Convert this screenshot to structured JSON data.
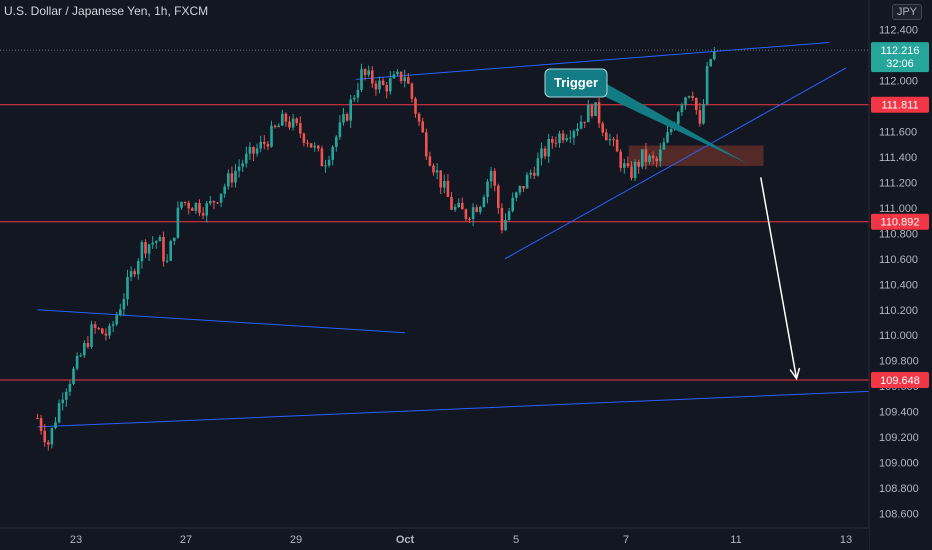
{
  "header": {
    "title": "U.S. Dollar / Japanese Yen, 1h, FXCM",
    "currency": "JPY"
  },
  "chart_data": {
    "type": "candlestick",
    "symbol": "USDJPY",
    "timeframe": "1h",
    "ylim": [
      108.55,
      112.55
    ],
    "y_ticks": [
      108.6,
      108.8,
      109.0,
      109.2,
      109.4,
      109.6,
      109.8,
      110.0,
      110.2,
      110.4,
      110.6,
      110.8,
      111.0,
      111.2,
      111.4,
      111.6,
      111.8,
      112.0,
      112.2,
      112.4
    ],
    "x_ticks": [
      {
        "label": "23",
        "day": 23
      },
      {
        "label": "27",
        "day": 27
      },
      {
        "label": "29",
        "day": 29
      },
      {
        "label": "Oct",
        "day": 31
      },
      {
        "label": "5",
        "day": 35
      },
      {
        "label": "7",
        "day": 37
      },
      {
        "label": "11",
        "day": 41
      },
      {
        "label": "13",
        "day": 43
      }
    ],
    "price_path": [
      [
        21.6,
        109.35
      ],
      [
        22.0,
        109.15
      ],
      [
        22.5,
        109.55
      ],
      [
        23.0,
        109.75
      ],
      [
        23.6,
        110.05
      ],
      [
        24.2,
        110.0
      ],
      [
        24.8,
        110.35
      ],
      [
        25.4,
        110.7
      ],
      [
        26.0,
        110.75
      ],
      [
        26.3,
        110.55
      ],
      [
        26.8,
        111.05
      ],
      [
        27.4,
        111.0
      ],
      [
        28.0,
        111.35
      ],
      [
        28.4,
        111.5
      ],
      [
        28.8,
        111.7
      ],
      [
        29.2,
        111.55
      ],
      [
        29.5,
        111.35
      ],
      [
        29.9,
        111.7
      ],
      [
        30.2,
        112.05
      ],
      [
        30.6,
        111.95
      ],
      [
        31.0,
        112.05
      ],
      [
        31.4,
        111.75
      ],
      [
        31.8,
        111.45
      ],
      [
        32.2,
        111.25
      ],
      [
        32.7,
        111.0
      ],
      [
        33.2,
        110.95
      ],
      [
        33.7,
        111.05
      ],
      [
        34.1,
        111.3
      ],
      [
        34.5,
        110.85
      ],
      [
        34.9,
        111.05
      ],
      [
        35.3,
        111.3
      ],
      [
        35.7,
        111.55
      ],
      [
        36.1,
        111.65
      ],
      [
        36.4,
        111.8
      ],
      [
        36.8,
        111.45
      ],
      [
        37.1,
        111.25
      ],
      [
        37.6,
        111.4
      ],
      [
        38.1,
        111.35
      ],
      [
        38.6,
        111.6
      ],
      [
        39.0,
        111.85
      ],
      [
        39.4,
        111.95
      ],
      [
        39.7,
        111.6
      ],
      [
        40.0,
        112.15
      ],
      [
        40.3,
        112.23
      ]
    ],
    "horizontal_levels": [
      111.811,
      110.892,
      109.648
    ],
    "zone": {
      "day_start": 37.1,
      "day_end": 41.5,
      "low": 111.33,
      "high": 111.49
    },
    "trendlines": [
      {
        "from": [
          30.1,
          112.01
        ],
        "to": [
          42.7,
          112.3
        ]
      },
      {
        "from": [
          34.6,
          110.6
        ],
        "to": [
          43.0,
          112.1
        ]
      },
      {
        "from": [
          21.6,
          110.2
        ],
        "to": [
          31.0,
          110.02
        ]
      },
      {
        "from": [
          21.6,
          109.28
        ],
        "to": [
          44.0,
          109.57
        ]
      }
    ],
    "arrow": {
      "from": [
        41.45,
        111.24
      ],
      "to": [
        42.1,
        109.66
      ]
    },
    "callout": {
      "label": "Trigger",
      "tip": [
        41.2,
        111.35
      ]
    },
    "last_price": {
      "value": "112.216",
      "countdown": "32:06",
      "color": "#26a69a"
    },
    "level_labels": [
      {
        "value": "111.811",
        "price": 111.811,
        "color": "#f23645"
      },
      {
        "value": "110.892",
        "price": 110.892,
        "color": "#f23645"
      },
      {
        "value": "109.648",
        "price": 109.648,
        "color": "#f23645"
      }
    ],
    "colors": {
      "background": "#131722",
      "up": "#26a69a",
      "down": "#ef5350",
      "level": "#f23645",
      "trendline": "#2962ff",
      "zone": "#8b3a2f",
      "callout": "#137b83"
    },
    "grid": false
  }
}
